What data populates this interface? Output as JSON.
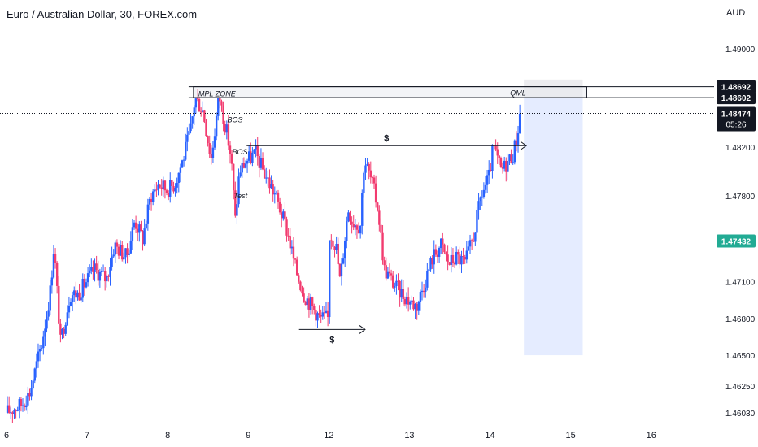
{
  "header": {
    "title": "Euro / Australian Dollar, 30, FOREX.com",
    "currency": "AUD"
  },
  "chart_data": {
    "type": "candlestick",
    "ylim": [
      1.4595,
      1.492
    ],
    "y_ticks": [
      "1.49000",
      "1.48200",
      "1.47800",
      "1.47100",
      "1.46800",
      "1.46500",
      "1.46250",
      "1.46030"
    ],
    "y_tick_values": [
      1.49,
      1.482,
      1.478,
      1.471,
      1.468,
      1.465,
      1.4625,
      1.4603
    ],
    "x_ticks": [
      "6",
      "7",
      "8",
      "9",
      "12",
      "13",
      "14",
      "15",
      "16"
    ],
    "x_tick_positions": [
      0.0,
      1.0,
      2.0,
      3.0,
      4.0,
      5.0,
      6.0,
      7.0,
      8.0
    ],
    "x_range": [
      0.0,
      8.78
    ],
    "path": [
      [
        0.0,
        1.4603
      ],
      [
        0.2,
        1.461
      ],
      [
        0.3,
        1.462
      ],
      [
        0.45,
        1.466
      ],
      [
        0.55,
        1.47
      ],
      [
        0.6,
        1.474
      ],
      [
        0.68,
        1.466
      ],
      [
        0.8,
        1.47
      ],
      [
        0.9,
        1.47
      ],
      [
        1.0,
        1.471
      ],
      [
        1.1,
        1.472
      ],
      [
        1.25,
        1.4712
      ],
      [
        1.35,
        1.474
      ],
      [
        1.5,
        1.473
      ],
      [
        1.6,
        1.476
      ],
      [
        1.7,
        1.4745
      ],
      [
        1.8,
        1.478
      ],
      [
        1.9,
        1.479
      ],
      [
        2.0,
        1.4785
      ],
      [
        2.1,
        1.479
      ],
      [
        2.2,
        1.481
      ],
      [
        2.3,
        1.4835
      ],
      [
        2.35,
        1.486
      ],
      [
        2.45,
        1.485
      ],
      [
        2.55,
        1.481
      ],
      [
        2.65,
        1.4862
      ],
      [
        2.7,
        1.4845
      ],
      [
        2.75,
        1.483
      ],
      [
        2.8,
        1.481
      ],
      [
        2.85,
        1.476
      ],
      [
        2.9,
        1.48
      ],
      [
        2.98,
        1.4808
      ],
      [
        3.1,
        1.4815
      ],
      [
        3.2,
        1.48
      ],
      [
        3.35,
        1.478
      ],
      [
        3.5,
        1.475
      ],
      [
        3.6,
        1.472
      ],
      [
        3.7,
        1.47
      ],
      [
        3.8,
        1.469
      ],
      [
        3.9,
        1.468
      ],
      [
        4.0,
        1.468
      ],
      [
        4.02,
        1.475
      ],
      [
        4.1,
        1.474
      ],
      [
        4.15,
        1.471
      ],
      [
        4.25,
        1.477
      ],
      [
        4.3,
        1.476
      ],
      [
        4.4,
        1.4755
      ],
      [
        4.45,
        1.481
      ],
      [
        4.55,
        1.479
      ],
      [
        4.62,
        1.477
      ],
      [
        4.7,
        1.472
      ],
      [
        4.85,
        1.4705
      ],
      [
        5.0,
        1.4695
      ],
      [
        5.1,
        1.469
      ],
      [
        5.2,
        1.471
      ],
      [
        5.3,
        1.473
      ],
      [
        5.4,
        1.474
      ],
      [
        5.5,
        1.4725
      ],
      [
        5.6,
        1.473
      ],
      [
        5.7,
        1.4725
      ],
      [
        5.8,
        1.4745
      ],
      [
        5.9,
        1.478
      ],
      [
        6.0,
        1.4795
      ],
      [
        6.05,
        1.482
      ],
      [
        6.15,
        1.48
      ],
      [
        6.2,
        1.4805
      ],
      [
        6.3,
        1.4815
      ],
      [
        6.35,
        1.483
      ],
      [
        6.38,
        1.4847
      ]
    ],
    "levels": [
      {
        "label": "1.48692",
        "value": 1.48692,
        "color": "#131722"
      },
      {
        "label": "1.48602",
        "value": 1.48602,
        "color": "#131722"
      },
      {
        "label": "1.47432",
        "value": 1.47432,
        "color": "#22ab94"
      }
    ],
    "last_price": {
      "label": "1.48474",
      "value": 1.48474,
      "countdown": "05:26"
    },
    "zone": {
      "label": "MPL ZONE",
      "label2": "QML",
      "x0": 2.32,
      "x1": 7.2,
      "y0": 1.48602,
      "y1": 1.48692
    },
    "annotations": [
      {
        "text": "BOS",
        "x": 2.74,
        "y": 1.484
      },
      {
        "text": "BOS",
        "x": 2.8,
        "y": 1.4814
      },
      {
        "text": "Test",
        "x": 2.82,
        "y": 1.4778
      }
    ],
    "liquidity": [
      {
        "label": "$",
        "x0": 2.98,
        "x1": 6.45,
        "y": 1.4821
      },
      {
        "label": "$",
        "x0": 3.63,
        "x1": 4.45,
        "y": 1.4671
      }
    ],
    "projection_box": {
      "x0": 6.42,
      "x1": 7.15,
      "top": 1.4875,
      "mid": 1.48602,
      "bottom": 1.465
    },
    "colors": {
      "up": "#2962ff",
      "down": "#f23b6f",
      "neutral": "#131722",
      "green": "#22ab94",
      "box": "#2962ff",
      "grid": "#f0f3fa"
    }
  }
}
